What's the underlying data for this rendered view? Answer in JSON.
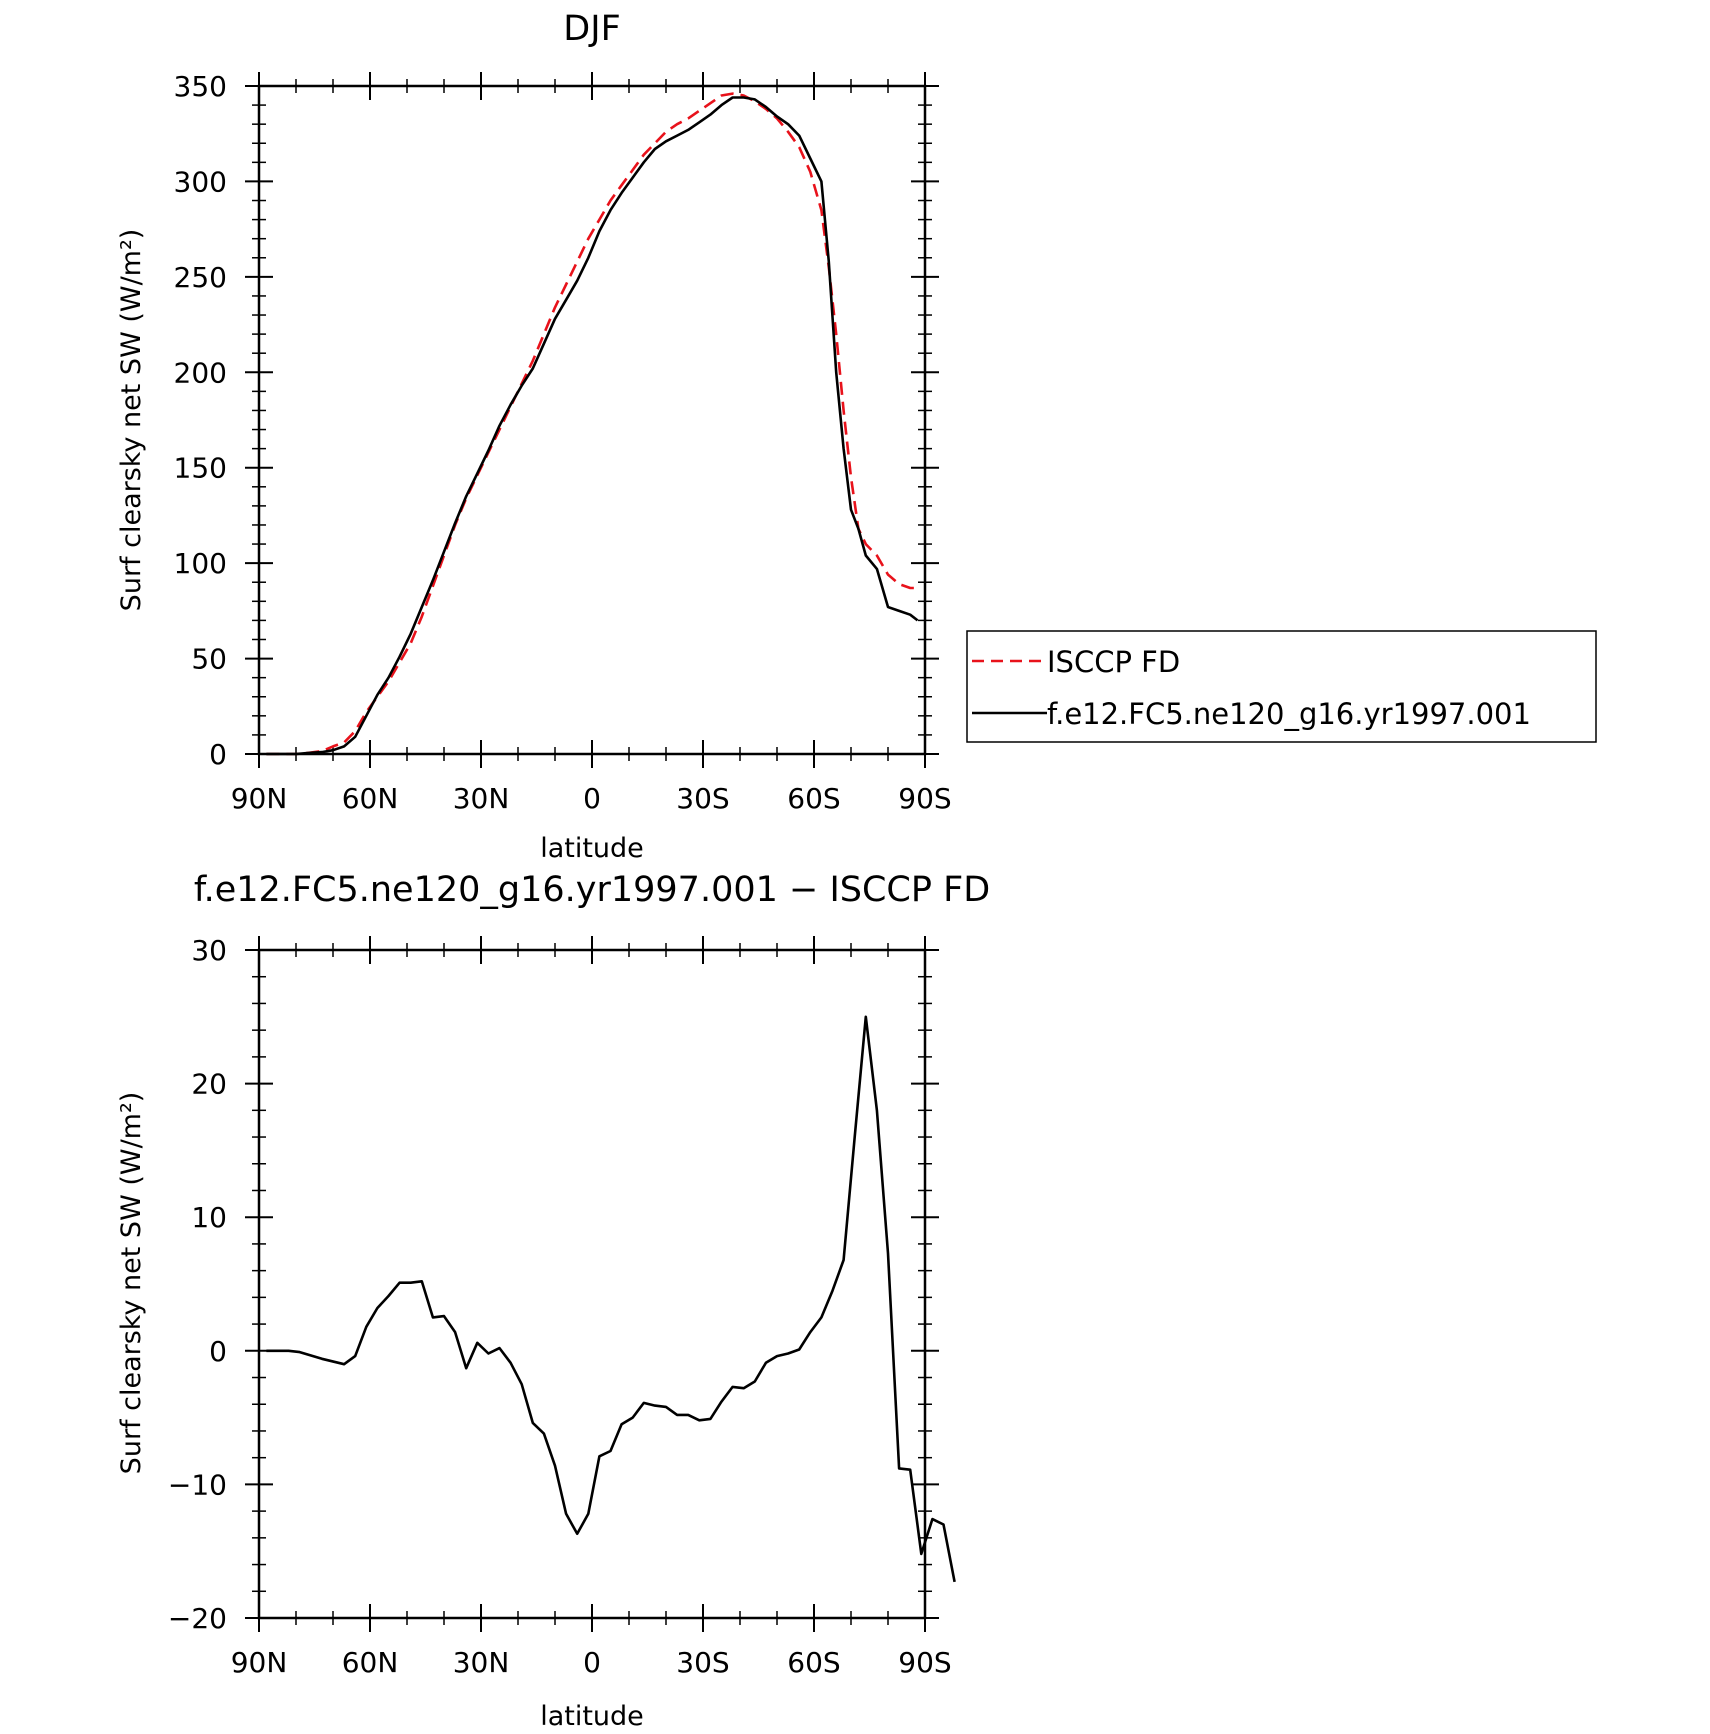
{
  "chart_data": [
    {
      "type": "line",
      "title": "DJF",
      "xlabel": "latitude",
      "ylabel": "Surf clearsky net SW (W/m²)",
      "xlim": [
        90,
        -90
      ],
      "ylim": [
        0,
        350
      ],
      "x_ticks": [
        {
          "value": 90,
          "label": "90N"
        },
        {
          "value": 60,
          "label": "60N"
        },
        {
          "value": 30,
          "label": "30N"
        },
        {
          "value": 0,
          "label": "0"
        },
        {
          "value": -30,
          "label": "30S"
        },
        {
          "value": -60,
          "label": "60S"
        },
        {
          "value": -90,
          "label": "90S"
        }
      ],
      "y_ticks": [
        {
          "value": 0,
          "label": "0"
        },
        {
          "value": 50,
          "label": "50"
        },
        {
          "value": 100,
          "label": "100"
        },
        {
          "value": 150,
          "label": "150"
        },
        {
          "value": 200,
          "label": "200"
        },
        {
          "value": 250,
          "label": "250"
        },
        {
          "value": 300,
          "label": "300"
        },
        {
          "value": 350,
          "label": "350"
        }
      ],
      "legend_position": "right",
      "series": [
        {
          "name": "ISCCP FD",
          "color": "#e8121b",
          "dash": true,
          "points": [
            [
              88,
              0
            ],
            [
              85,
              0
            ],
            [
              80,
              0
            ],
            [
              77,
              0.5
            ],
            [
              73,
              1.5
            ],
            [
              70,
              4
            ],
            [
              67,
              6
            ],
            [
              64,
              12
            ],
            [
              61,
              22
            ],
            [
              58,
              30
            ],
            [
              55,
              38
            ],
            [
              52,
              48
            ],
            [
              49,
              58
            ],
            [
              46,
              72
            ],
            [
              43,
              88
            ],
            [
              40,
              104
            ],
            [
              37,
              120
            ],
            [
              34,
              134
            ],
            [
              31,
              146
            ],
            [
              28,
              158
            ],
            [
              25,
              170
            ],
            [
              22,
              182
            ],
            [
              19,
              194
            ],
            [
              16,
              206
            ],
            [
              13,
              220
            ],
            [
              10,
              234
            ],
            [
              7,
              246
            ],
            [
              4,
              258
            ],
            [
              1,
              270
            ],
            [
              -2,
              280
            ],
            [
              -5,
              290
            ],
            [
              -8,
              298
            ],
            [
              -11,
              306
            ],
            [
              -14,
              314
            ],
            [
              -17,
              320
            ],
            [
              -20,
              326
            ],
            [
              -23,
              330
            ],
            [
              -26,
              333
            ],
            [
              -29,
              337
            ],
            [
              -32,
              341
            ],
            [
              -35,
              345
            ],
            [
              -38,
              346
            ],
            [
              -41,
              345
            ],
            [
              -44,
              342
            ],
            [
              -47,
              338
            ],
            [
              -50,
              333
            ],
            [
              -53,
              326
            ],
            [
              -56,
              318
            ],
            [
              -59,
              305
            ],
            [
              -62,
              285
            ],
            [
              -64,
              255
            ],
            [
              -66,
              220
            ],
            [
              -68,
              180
            ],
            [
              -70,
              145
            ],
            [
              -72,
              118
            ],
            [
              -74,
              110
            ],
            [
              -77,
              104
            ],
            [
              -80,
              94
            ],
            [
              -83,
              89
            ],
            [
              -86,
              87
            ],
            [
              -88,
              87
            ]
          ]
        },
        {
          "name": "f.e12.FC5.ne120_g16.yr1997.001",
          "color": "#000000",
          "dash": false,
          "points": [
            [
              88,
              0
            ],
            [
              85,
              0
            ],
            [
              80,
              0
            ],
            [
              77,
              0.5
            ],
            [
              73,
              1
            ],
            [
              70,
              2
            ],
            [
              67,
              4
            ],
            [
              64,
              9
            ],
            [
              61,
              20
            ],
            [
              58,
              31
            ],
            [
              55,
              40
            ],
            [
              52,
              51
            ],
            [
              49,
              63
            ],
            [
              46,
              77
            ],
            [
              43,
              91
            ],
            [
              40,
              106
            ],
            [
              37,
              121
            ],
            [
              34,
              135
            ],
            [
              31,
              147
            ],
            [
              28,
              159
            ],
            [
              25,
              172
            ],
            [
              22,
              183
            ],
            [
              19,
              193
            ],
            [
              16,
              202
            ],
            [
              13,
              215
            ],
            [
              10,
              228
            ],
            [
              7,
              238
            ],
            [
              4,
              248
            ],
            [
              1,
              260
            ],
            [
              -2,
              274
            ],
            [
              -5,
              285
            ],
            [
              -8,
              294
            ],
            [
              -11,
              302
            ],
            [
              -14,
              310
            ],
            [
              -17,
              317
            ],
            [
              -20,
              321
            ],
            [
              -23,
              324
            ],
            [
              -26,
              327
            ],
            [
              -29,
              331
            ],
            [
              -32,
              335
            ],
            [
              -35,
              340
            ],
            [
              -38,
              344
            ],
            [
              -41,
              344
            ],
            [
              -44,
              343
            ],
            [
              -47,
              339
            ],
            [
              -50,
              334
            ],
            [
              -53,
              330
            ],
            [
              -56,
              324
            ],
            [
              -59,
              312
            ],
            [
              -62,
              300
            ],
            [
              -64,
              258
            ],
            [
              -66,
              200
            ],
            [
              -68,
              160
            ],
            [
              -70,
              128
            ],
            [
              -72,
              118
            ],
            [
              -74,
              104
            ],
            [
              -77,
              97
            ],
            [
              -80,
              77
            ],
            [
              -83,
              75
            ],
            [
              -86,
              73
            ],
            [
              -88,
              70
            ]
          ]
        }
      ]
    },
    {
      "type": "line",
      "title": "f.e12.FC5.ne120_g16.yr1997.001 − ISCCP FD",
      "xlabel": "latitude",
      "ylabel": "Surf clearsky net SW (W/m²)",
      "xlim": [
        90,
        -90
      ],
      "ylim": [
        -20,
        30
      ],
      "x_ticks": [
        {
          "value": 90,
          "label": "90N"
        },
        {
          "value": 60,
          "label": "60N"
        },
        {
          "value": 30,
          "label": "30N"
        },
        {
          "value": 0,
          "label": "0"
        },
        {
          "value": -30,
          "label": "30S"
        },
        {
          "value": -60,
          "label": "60S"
        },
        {
          "value": -90,
          "label": "90S"
        }
      ],
      "y_ticks": [
        {
          "value": -20,
          "label": "−20"
        },
        {
          "value": -10,
          "label": "−10"
        },
        {
          "value": 0,
          "label": "0"
        },
        {
          "value": 10,
          "label": "10"
        },
        {
          "value": 20,
          "label": "20"
        },
        {
          "value": 30,
          "label": "30"
        }
      ],
      "series": [
        {
          "color": "#000000",
          "dash": false,
          "points": [
            [
              88,
              0
            ],
            [
              82,
              0
            ],
            [
              79,
              -0.1
            ],
            [
              73,
              -0.6
            ],
            [
              67,
              -1
            ],
            [
              64,
              -0.4
            ],
            [
              61,
              1.8
            ],
            [
              58,
              3.2
            ],
            [
              55,
              4.1
            ],
            [
              52,
              5.1
            ],
            [
              49,
              5.1
            ],
            [
              46,
              5.2
            ],
            [
              43,
              2.5
            ],
            [
              40,
              2.6
            ],
            [
              37,
              1.4
            ],
            [
              34,
              -1.3
            ],
            [
              31,
              0.6
            ],
            [
              28,
              -0.2
            ],
            [
              25,
              0.2
            ],
            [
              22,
              -0.9
            ],
            [
              19,
              -2.5
            ],
            [
              16,
              -5.4
            ],
            [
              13,
              -6.2
            ],
            [
              10,
              -8.6
            ],
            [
              7,
              -12.2
            ],
            [
              4,
              -13.7
            ],
            [
              1,
              -12.2
            ],
            [
              -2,
              -7.9
            ],
            [
              -5,
              -7.5
            ],
            [
              -8,
              -5.5
            ],
            [
              -11,
              -5
            ],
            [
              -14,
              -3.9
            ],
            [
              -17,
              -4.1
            ],
            [
              -20,
              -4.2
            ],
            [
              -23,
              -4.8
            ],
            [
              -26,
              -4.8
            ],
            [
              -29,
              -5.2
            ],
            [
              -32,
              -5.1
            ],
            [
              -35,
              -3.8
            ],
            [
              -38,
              -2.7
            ],
            [
              -41,
              -2.8
            ],
            [
              -44,
              -2.3
            ],
            [
              -47,
              -0.9
            ],
            [
              -50,
              -0.4
            ],
            [
              -53,
              -0.2
            ],
            [
              -56,
              0.1
            ],
            [
              -59,
              1.4
            ],
            [
              -62,
              2.5
            ],
            [
              -65,
              4.5
            ],
            [
              -68,
              6.8
            ],
            [
              -71,
              16
            ],
            [
              -74,
              25
            ],
            [
              -77,
              18
            ],
            [
              -80,
              7.3
            ],
            [
              -83,
              -8.8
            ],
            [
              -86,
              -8.9
            ],
            [
              -89,
              -15.2
            ],
            [
              -92,
              -12.6
            ],
            [
              -95,
              -13
            ],
            [
              -98,
              -17.3
            ]
          ]
        }
      ]
    }
  ]
}
